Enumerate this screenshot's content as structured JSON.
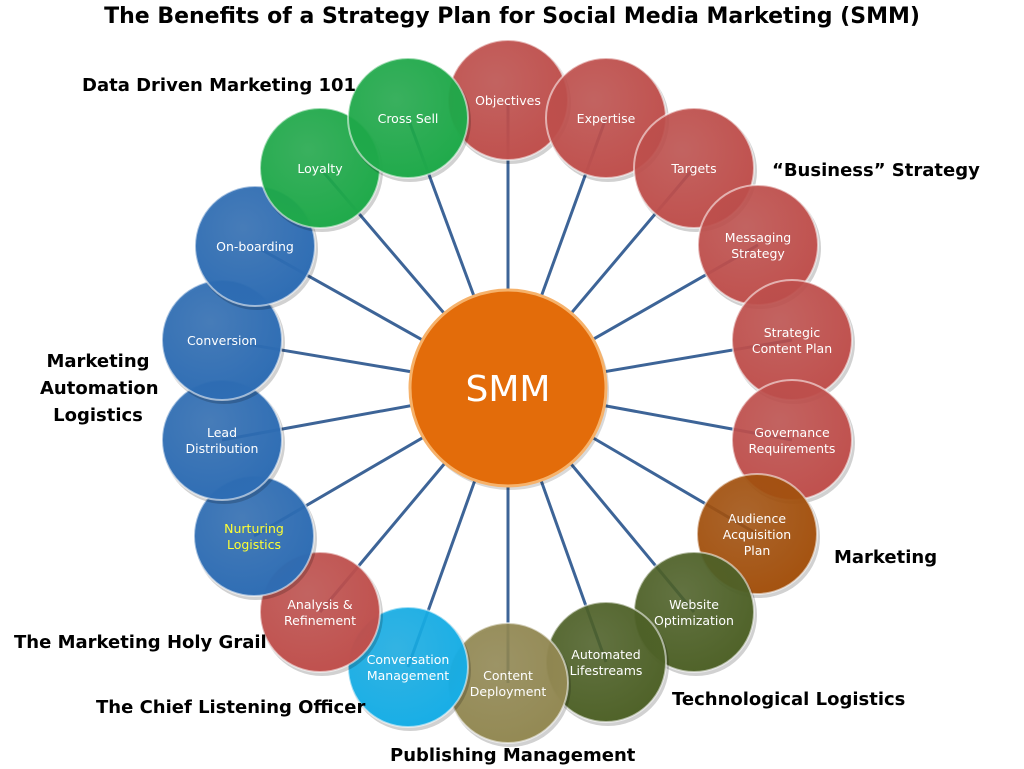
{
  "title": "The Benefits of a Strategy Plan for Social Media Marketing (SMM)",
  "center": {
    "label": "SMM",
    "color": "#e36c0a"
  },
  "connector_color": "#3d6497",
  "nodes": [
    {
      "lines": [
        "Objectives"
      ],
      "color": "#c0504d",
      "text_color": "#ffffff"
    },
    {
      "lines": [
        "Expertise"
      ],
      "color": "#c0504d",
      "text_color": "#ffffff"
    },
    {
      "lines": [
        "Targets"
      ],
      "color": "#c0504d",
      "text_color": "#ffffff"
    },
    {
      "lines": [
        "Messaging",
        "Strategy"
      ],
      "color": "#c0504d",
      "text_color": "#ffffff"
    },
    {
      "lines": [
        "Strategic",
        "Content Plan"
      ],
      "color": "#c0504d",
      "text_color": "#ffffff"
    },
    {
      "lines": [
        "Governance",
        "Requirements"
      ],
      "color": "#c0504d",
      "text_color": "#ffffff"
    },
    {
      "lines": [
        "Audience",
        "Acquisition",
        "Plan"
      ],
      "color": "#a4520f",
      "text_color": "#ffffff"
    },
    {
      "lines": [
        "Website",
        "Optimization"
      ],
      "color": "#4f6228",
      "text_color": "#ffffff"
    },
    {
      "lines": [
        "Automated",
        "Lifestreams"
      ],
      "color": "#4f6228",
      "text_color": "#ffffff"
    },
    {
      "lines": [
        "Content",
        "Deployment"
      ],
      "color": "#938953",
      "text_color": "#ffffff"
    },
    {
      "lines": [
        "Conversation",
        "Management"
      ],
      "color": "#17aee6",
      "text_color": "#ffffff"
    },
    {
      "lines": [
        "Analysis &",
        "Refinement"
      ],
      "color": "#c0504d",
      "text_color": "#ffffff"
    },
    {
      "lines": [
        "Nurturing",
        "Logistics"
      ],
      "color": "#2e6db4",
      "text_color": "#ffff33"
    },
    {
      "lines": [
        "Lead",
        "Distribution"
      ],
      "color": "#2e6db4",
      "text_color": "#ffffff"
    },
    {
      "lines": [
        "Conversion"
      ],
      "color": "#2e6db4",
      "text_color": "#ffffff"
    },
    {
      "lines": [
        "On-boarding"
      ],
      "color": "#2e6db4",
      "text_color": "#ffffff"
    },
    {
      "lines": [
        "Loyalty"
      ],
      "color": "#1faa4a",
      "text_color": "#ffffff"
    },
    {
      "lines": [
        "Cross Sell"
      ],
      "color": "#1faa4a",
      "text_color": "#ffffff"
    }
  ],
  "categories": [
    {
      "text": "Data Driven Marketing 101",
      "color": "#1faa4a"
    },
    {
      "text": "“Business” Strategy",
      "color": "#7b2c27"
    },
    {
      "text": "Marketing Automation Logistics",
      "color": "#1f78c8"
    },
    {
      "text": "Marketing",
      "color": "#c4600d"
    },
    {
      "text": "The Marketing Holy Grail",
      "color": "#7b2c27"
    },
    {
      "text": "Technological Logistics",
      "color": "#4f6228"
    },
    {
      "text": "The Chief Listening Officer",
      "color": "#17aee6"
    },
    {
      "text": "Publishing Management",
      "color": "#4a4628"
    }
  ]
}
